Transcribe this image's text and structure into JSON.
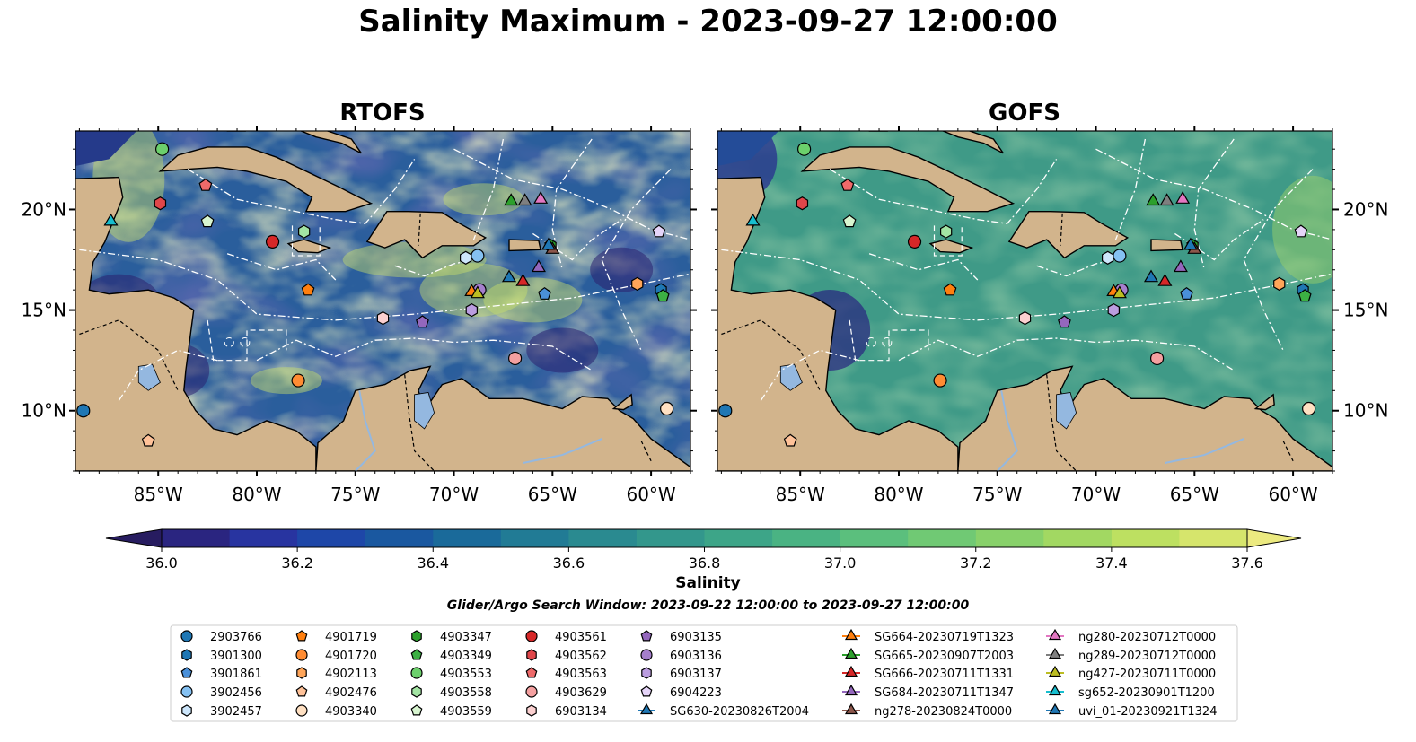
{
  "chart_data": {
    "type": "heatmap",
    "title": "Salinity Maximum - 2023-09-27 12:00:00",
    "panels": [
      {
        "name": "RTOFS"
      },
      {
        "name": "GOFS"
      }
    ],
    "lon_range": [
      -89.2,
      -58.0
    ],
    "lat_range": [
      7.0,
      23.9
    ],
    "x_ticks": [
      {
        "value": -85,
        "label": "85°W"
      },
      {
        "value": -80,
        "label": "80°W"
      },
      {
        "value": -75,
        "label": "75°W"
      },
      {
        "value": -70,
        "label": "70°W"
      },
      {
        "value": -65,
        "label": "65°W"
      },
      {
        "value": -60,
        "label": "60°W"
      }
    ],
    "y_ticks": [
      {
        "value": 20,
        "label": "20°N"
      },
      {
        "value": 15,
        "label": "15°N"
      },
      {
        "value": 10,
        "label": "10°N"
      }
    ],
    "colorbar": {
      "label": "Salinity",
      "range": [
        35.9,
        37.7
      ],
      "ticks": [
        "36.0",
        "36.2",
        "36.4",
        "36.6",
        "36.8",
        "37.0",
        "37.2",
        "37.4",
        "37.6"
      ],
      "colors": [
        "#271c60",
        "#2a2580",
        "#2834a0",
        "#1e47a8",
        "#1a58a0",
        "#1a6a9a",
        "#217b95",
        "#2a8a90",
        "#33978c",
        "#3da588",
        "#4ab383",
        "#5bbf7d",
        "#70c974",
        "#88d16a",
        "#a2d862",
        "#bde061",
        "#d6e56c",
        "#ecea80"
      ]
    },
    "land_color": "#d2b48c",
    "lake_color": "#94b8e0",
    "markers": [
      {
        "id": "2903766",
        "shape": "circle",
        "color": "#1f77b4",
        "lon": -88.8,
        "lat": 10.0
      },
      {
        "id": "3901300",
        "shape": "hexagon",
        "color": "#1f77b4",
        "lon": -59.5,
        "lat": 16.0
      },
      {
        "id": "3901861",
        "shape": "pentagon",
        "color": "#4a90d9",
        "lon": -65.4,
        "lat": 15.8
      },
      {
        "id": "3902456",
        "shape": "circle",
        "color": "#85c1f2",
        "lon": -68.8,
        "lat": 17.7
      },
      {
        "id": "3902457",
        "shape": "hexagon",
        "color": "#cde6fb",
        "lon": -69.4,
        "lat": 17.6
      },
      {
        "id": "4901719",
        "shape": "pentagon",
        "color": "#ff7f0e",
        "lon": -77.4,
        "lat": 16.0
      },
      {
        "id": "4901720",
        "shape": "circle",
        "color": "#ff8c33",
        "lon": -77.9,
        "lat": 11.5
      },
      {
        "id": "4902113",
        "shape": "hexagon",
        "color": "#ffa559",
        "lon": -60.7,
        "lat": 16.3
      },
      {
        "id": "4902476",
        "shape": "pentagon",
        "color": "#ffc299",
        "lon": -85.5,
        "lat": 8.5
      },
      {
        "id": "4903340",
        "shape": "circle",
        "color": "#ffe0c2",
        "lon": -59.2,
        "lat": 10.1
      },
      {
        "id": "4903347",
        "shape": "hexagon",
        "color": "#2ca02c",
        "lon": -65.1,
        "lat": 18.2
      },
      {
        "id": "4903349",
        "shape": "pentagon",
        "color": "#3cb043",
        "lon": -59.4,
        "lat": 15.7
      },
      {
        "id": "4903553",
        "shape": "circle",
        "color": "#6cd06c",
        "lon": -84.8,
        "lat": 23.0
      },
      {
        "id": "4903558",
        "shape": "hexagon",
        "color": "#a3e4a3",
        "lon": -77.6,
        "lat": 18.9
      },
      {
        "id": "4903559",
        "shape": "pentagon",
        "color": "#d8f5d0",
        "lon": -82.5,
        "lat": 19.4
      },
      {
        "id": "4903561",
        "shape": "circle",
        "color": "#d62728",
        "lon": -79.2,
        "lat": 18.4
      },
      {
        "id": "4903562",
        "shape": "hexagon",
        "color": "#e0464a",
        "lon": -84.9,
        "lat": 20.3
      },
      {
        "id": "4903563",
        "shape": "pentagon",
        "color": "#ee6a6a",
        "lon": -82.6,
        "lat": 21.2
      },
      {
        "id": "4903629",
        "shape": "circle",
        "color": "#f4a0a0",
        "lon": -66.9,
        "lat": 12.6
      },
      {
        "id": "6903134",
        "shape": "hexagon",
        "color": "#fbd0d0",
        "lon": -73.6,
        "lat": 14.6
      },
      {
        "id": "6903135",
        "shape": "pentagon",
        "color": "#9467bd",
        "lon": -71.6,
        "lat": 14.4
      },
      {
        "id": "6903136",
        "shape": "circle",
        "color": "#a57fcc",
        "lon": -68.7,
        "lat": 16.0
      },
      {
        "id": "6903137",
        "shape": "hexagon",
        "color": "#bb9de0",
        "lon": -69.1,
        "lat": 15.0
      },
      {
        "id": "6904223",
        "shape": "pentagon",
        "color": "#e5d4f8",
        "lon": -59.6,
        "lat": 18.9
      },
      {
        "id": "SG630-20230826T2004",
        "shape": "triangle",
        "color": "#1f77b4",
        "lon": -67.2,
        "lat": 16.6
      },
      {
        "id": "SG664-20230719T1323",
        "shape": "triangle",
        "color": "#ff7f0e",
        "lon": -69.1,
        "lat": 15.9
      },
      {
        "id": "SG665-20230907T2003",
        "shape": "triangle",
        "color": "#2ca02c",
        "lon": -67.1,
        "lat": 20.4
      },
      {
        "id": "SG666-20230711T1331",
        "shape": "triangle",
        "color": "#d62728",
        "lon": -66.5,
        "lat": 16.4
      },
      {
        "id": "SG684-20230711T1347",
        "shape": "triangle",
        "color": "#9467bd",
        "lon": -65.7,
        "lat": 17.1
      },
      {
        "id": "ng278-20230824T0000",
        "shape": "triangle",
        "color": "#8c564b",
        "lon": -65.0,
        "lat": 18.0
      },
      {
        "id": "ng280-20230712T0000",
        "shape": "triangle",
        "color": "#e377c2",
        "lon": -65.6,
        "lat": 20.5
      },
      {
        "id": "ng289-20230712T0000",
        "shape": "triangle",
        "color": "#7f7f7f",
        "lon": -66.4,
        "lat": 20.4
      },
      {
        "id": "ng427-20230711T0000",
        "shape": "triangle",
        "color": "#bcbd22",
        "lon": -68.8,
        "lat": 15.8
      },
      {
        "id": "sg652-20230901T1200",
        "shape": "triangle",
        "color": "#17becf",
        "lon": -87.4,
        "lat": 19.4
      },
      {
        "id": "uvi_01-20230921T1324",
        "shape": "triangle",
        "color": "#1f77b4",
        "lon": -65.2,
        "lat": 18.2
      }
    ]
  },
  "search_window": "Glider/Argo Search Window: 2023-09-22 12:00:00 to 2023-09-27 12:00:00"
}
